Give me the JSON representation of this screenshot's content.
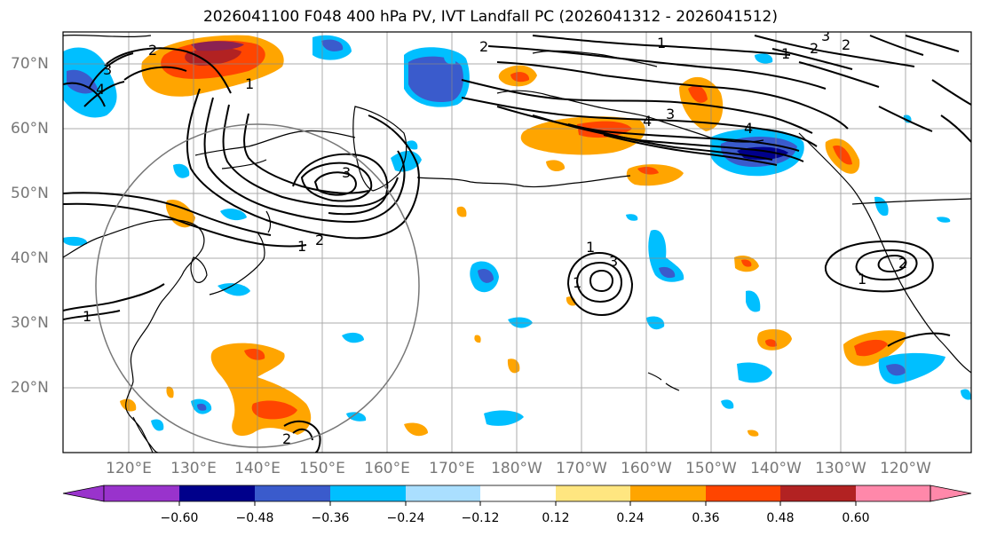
{
  "title": "2026041100 F048 400 hPa PV, IVT Landfall PC (2026041312 - 2026041512)",
  "lat_labels": [
    "70°N",
    "60°N",
    "50°N",
    "40°N",
    "30°N",
    "20°N"
  ],
  "lon_labels": [
    "120°E",
    "130°E",
    "140°E",
    "150°E",
    "160°E",
    "170°E",
    "180°W",
    "170°W",
    "160°W",
    "150°W",
    "140°W",
    "130°W",
    "120°W"
  ],
  "contour_labels": [
    "2",
    "3",
    "4",
    "1",
    "3",
    "2",
    "1",
    "2",
    "1",
    "2",
    "1",
    "2",
    "3",
    "4",
    "3",
    "4",
    "1",
    "1",
    "3",
    "2",
    "1",
    "2",
    "1"
  ],
  "colorbar": {
    "ticks": [
      "−0.60",
      "−0.48",
      "−0.36",
      "−0.24",
      "−0.12",
      "0.12",
      "0.24",
      "0.36",
      "0.48",
      "0.60"
    ],
    "colors": [
      "#9933cc",
      "#00008b",
      "#3a5bcc",
      "#00bfff",
      "#aadfff",
      "#ffffff",
      "#ffe680",
      "#ffa500",
      "#ff4500",
      "#b22222",
      "#ff88aa"
    ]
  },
  "legend_colors": {
    "strong_negative": "#3a5bcc",
    "negative": "#00bfff",
    "positive": "#ffa500",
    "strong_positive": "#ff4500",
    "peak_positive": "#b22222"
  }
}
